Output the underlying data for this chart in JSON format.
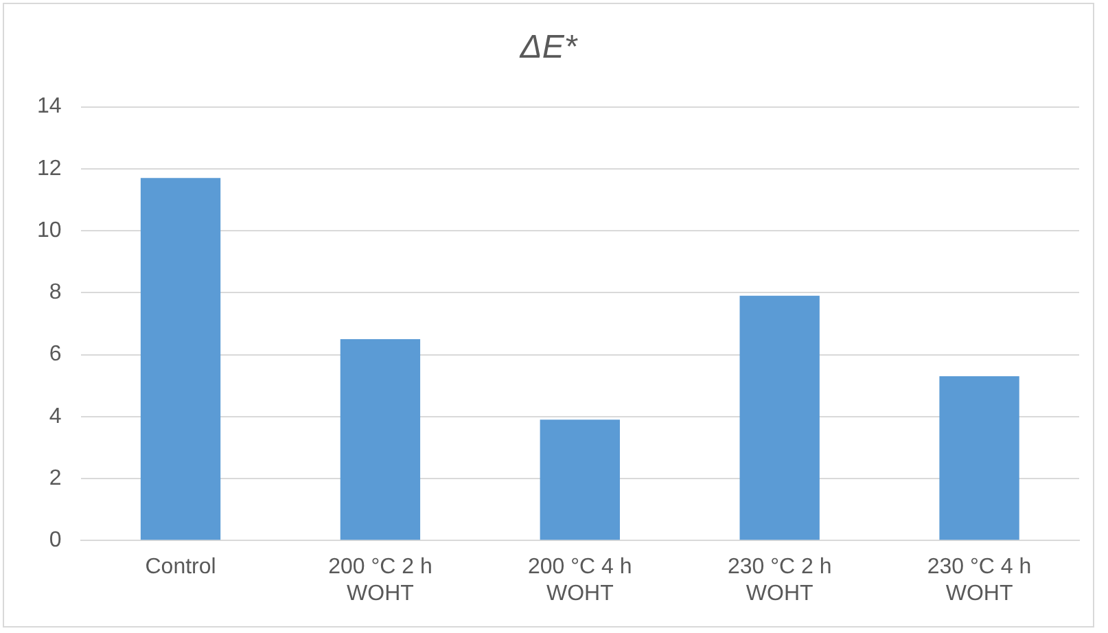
{
  "chart_data": {
    "type": "bar",
    "title": "ΔE*",
    "categories": [
      "Control",
      "200 °C 2 h WOHT",
      "200 °C 4 h WOHT",
      "230 °C 2 h WOHT",
      "230 °C 4 h WOHT"
    ],
    "values": [
      11.7,
      6.5,
      3.9,
      7.9,
      5.3
    ],
    "color": "#5b9bd5",
    "ylim": [
      0,
      14
    ],
    "yticks": [
      0,
      2,
      4,
      6,
      8,
      10,
      12,
      14
    ],
    "grid": "y",
    "legend": false
  }
}
